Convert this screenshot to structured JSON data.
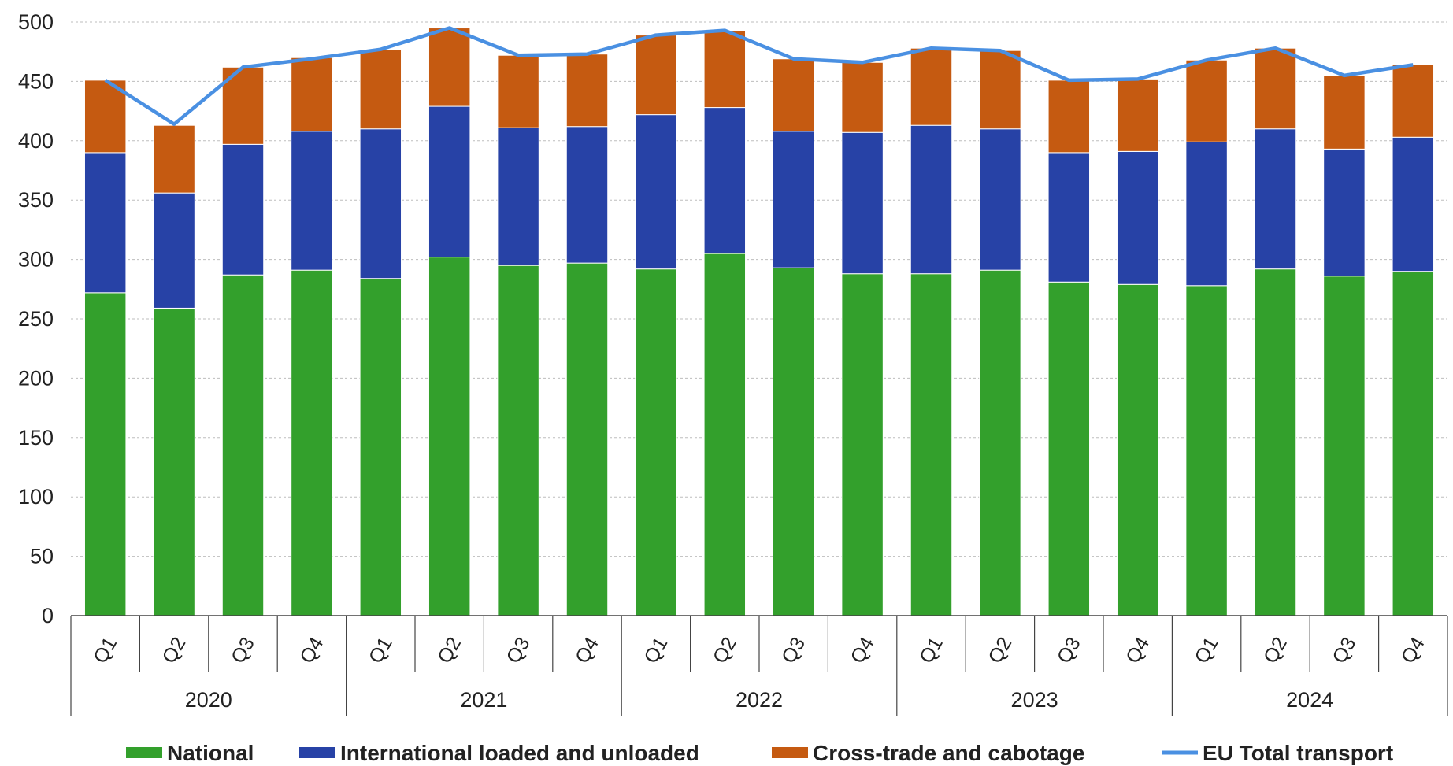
{
  "chart_data": {
    "type": "bar",
    "stacked": true,
    "title": "",
    "xlabel": "",
    "ylabel": "",
    "ylim": [
      0,
      500
    ],
    "yticks": [
      "0",
      "50",
      "100",
      "150",
      "200",
      "250",
      "300",
      "350",
      "400",
      "450",
      "500"
    ],
    "grid": "horizontal dashed",
    "legend_position": "bottom",
    "years": [
      "2020",
      "2021",
      "2022",
      "2023",
      "2024"
    ],
    "categories": [
      "Q1",
      "Q2",
      "Q3",
      "Q4",
      "Q1",
      "Q2",
      "Q3",
      "Q4",
      "Q1",
      "Q2",
      "Q3",
      "Q4",
      "Q1",
      "Q2",
      "Q3",
      "Q4",
      "Q1",
      "Q2",
      "Q3",
      "Q4"
    ],
    "series": [
      {
        "name": "National",
        "kind": "bar",
        "color": "#33a02c",
        "values": [
          272,
          259,
          287,
          291,
          284,
          302,
          295,
          297,
          292,
          305,
          293,
          288,
          288,
          291,
          281,
          279,
          278,
          292,
          286,
          290
        ]
      },
      {
        "name": "International loaded and unloaded",
        "kind": "bar",
        "color": "#2742a6",
        "values": [
          118,
          97,
          110,
          117,
          126,
          127,
          116,
          115,
          130,
          123,
          115,
          119,
          125,
          119,
          109,
          112,
          121,
          118,
          107,
          113
        ]
      },
      {
        "name": "Cross-trade and cabotage",
        "kind": "bar",
        "color": "#c55a11",
        "values": [
          61,
          57,
          65,
          62,
          67,
          66,
          61,
          61,
          67,
          65,
          61,
          59,
          65,
          66,
          61,
          61,
          69,
          68,
          62,
          61
        ]
      },
      {
        "name": "EU Total transport",
        "kind": "line",
        "color": "#4a90e2",
        "values": [
          451,
          414,
          462,
          469,
          477,
          495,
          472,
          473,
          489,
          493,
          469,
          466,
          478,
          476,
          451,
          452,
          468,
          478,
          455,
          464
        ]
      }
    ]
  }
}
